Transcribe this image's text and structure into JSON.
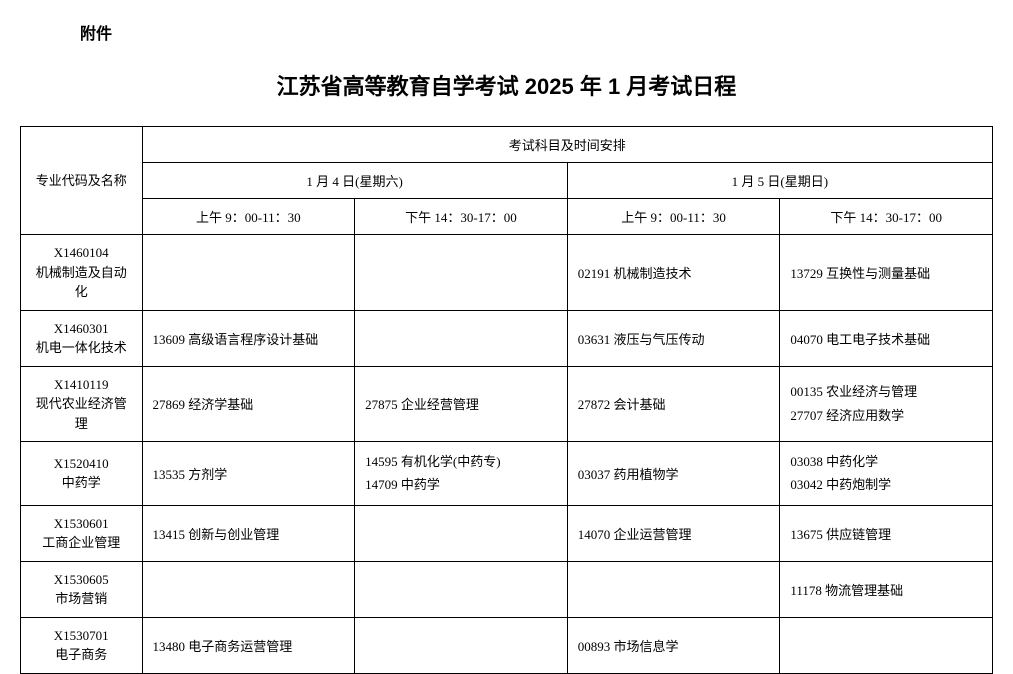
{
  "attachment_label": "附件",
  "title": "江苏省高等教育自学考试 2025 年 1 月考试日程",
  "table": {
    "header": {
      "major_col": "专业代码及名称",
      "schedule_header": "考试科目及时间安排",
      "day1": "1 月 4 日(星期六)",
      "day2": "1 月 5 日(星期日)",
      "slot1": "上午 9：00-11：30",
      "slot2": "下午 14：30-17：00",
      "slot3": "上午 9：00-11：30",
      "slot4": "下午 14：30-17：00"
    },
    "rows": [
      {
        "code": "X1460104",
        "name": "机械制造及自动化",
        "c1": "",
        "c2": "",
        "c3": "02191  机械制造技术",
        "c4": "13729  互换性与测量基础"
      },
      {
        "code": "X1460301",
        "name": "机电一体化技术",
        "c1": "13609  高级语言程序设计基础",
        "c2": "",
        "c3": "03631  液压与气压传动",
        "c4": "04070  电工电子技术基础"
      },
      {
        "code": "X1410119",
        "name": "现代农业经济管理",
        "c1": "27869  经济学基础",
        "c2": "27875  企业经营管理",
        "c3": "27872  会计基础",
        "c4_a": "00135  农业经济与管理",
        "c4_b": "27707  经济应用数学"
      },
      {
        "code": "X1520410",
        "name": "中药学",
        "c1": "13535  方剂学",
        "c2_a": "14595  有机化学(中药专)",
        "c2_b": "14709  中药学",
        "c3": "03037  药用植物学",
        "c4_a": "03038  中药化学",
        "c4_b": "03042  中药炮制学"
      },
      {
        "code": "X1530601",
        "name": "工商企业管理",
        "c1": "13415  创新与创业管理",
        "c2": "",
        "c3": "14070  企业运营管理",
        "c4": "13675  供应链管理"
      },
      {
        "code": "X1530605",
        "name": "市场营销",
        "c1": "",
        "c2": "",
        "c3": "",
        "c4": "11178  物流管理基础"
      },
      {
        "code": "X1530701",
        "name": "电子商务",
        "c1": "13480  电子商务运营管理",
        "c2": "",
        "c3": "00893  市场信息学",
        "c4": ""
      }
    ]
  }
}
